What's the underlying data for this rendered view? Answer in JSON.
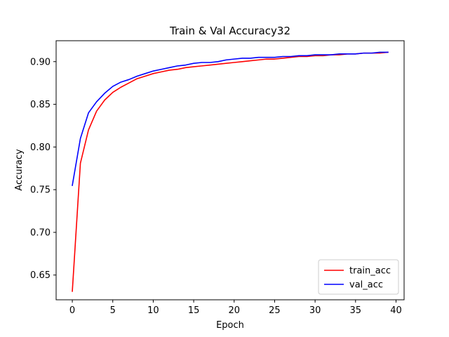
{
  "chart_data": {
    "type": "line",
    "title": "Train & Val Accuracy32",
    "xlabel": "Epoch",
    "ylabel": "Accuracy",
    "xlim": [
      -2,
      41
    ],
    "ylim": [
      0.621,
      0.9245
    ],
    "xticks": [
      0,
      5,
      10,
      15,
      20,
      25,
      30,
      35,
      40
    ],
    "yticks": [
      0.65,
      0.7,
      0.75,
      0.8,
      0.85,
      0.9
    ],
    "ytick_labels": [
      "0.65",
      "0.70",
      "0.75",
      "0.80",
      "0.85",
      "0.90"
    ],
    "grid": false,
    "legend_position": "bottom-right",
    "x": [
      0,
      1,
      2,
      3,
      4,
      5,
      6,
      7,
      8,
      9,
      10,
      11,
      12,
      13,
      14,
      15,
      16,
      17,
      18,
      19,
      20,
      21,
      22,
      23,
      24,
      25,
      26,
      27,
      28,
      29,
      30,
      31,
      32,
      33,
      34,
      35,
      36,
      37,
      38,
      39
    ],
    "series": [
      {
        "name": "train_acc",
        "color": "#ff0000",
        "values": [
          0.631,
          0.781,
          0.82,
          0.842,
          0.855,
          0.864,
          0.87,
          0.875,
          0.88,
          0.883,
          0.886,
          0.888,
          0.89,
          0.891,
          0.893,
          0.894,
          0.895,
          0.896,
          0.897,
          0.898,
          0.899,
          0.9,
          0.901,
          0.902,
          0.903,
          0.903,
          0.904,
          0.905,
          0.906,
          0.906,
          0.907,
          0.907,
          0.908,
          0.908,
          0.909,
          0.909,
          0.91,
          0.91,
          0.91,
          0.911
        ]
      },
      {
        "name": "val_acc",
        "color": "#0000ff",
        "values": [
          0.755,
          0.81,
          0.84,
          0.853,
          0.863,
          0.871,
          0.876,
          0.879,
          0.883,
          0.886,
          0.889,
          0.891,
          0.893,
          0.895,
          0.896,
          0.898,
          0.899,
          0.899,
          0.9,
          0.902,
          0.903,
          0.904,
          0.904,
          0.905,
          0.905,
          0.905,
          0.906,
          0.906,
          0.907,
          0.907,
          0.908,
          0.908,
          0.908,
          0.909,
          0.909,
          0.909,
          0.91,
          0.91,
          0.911,
          0.911
        ]
      }
    ]
  }
}
